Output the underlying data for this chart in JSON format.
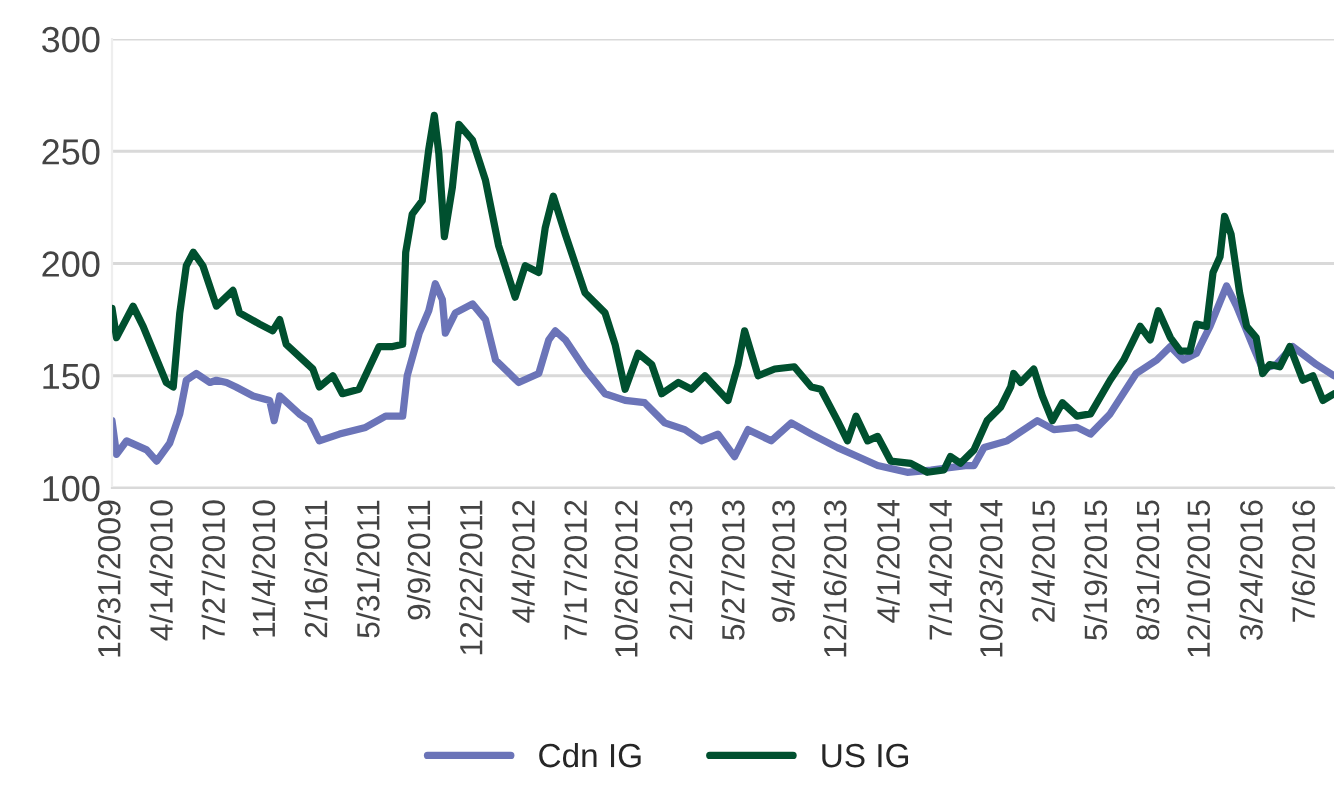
{
  "chart_data": {
    "type": "line",
    "series": [
      {
        "name": "Cdn IG",
        "color": "#6b74b8",
        "x": [
          "2009-12-31",
          "2010-01-09",
          "2010-01-29",
          "2010-03-10",
          "2010-03-30",
          "2010-04-25",
          "2010-05-15",
          "2010-05-28",
          "2010-06-17",
          "2010-07-14",
          "2010-07-27",
          "2010-08-16",
          "2010-09-04",
          "2010-10-08",
          "2010-11-10",
          "2010-11-19",
          "2010-11-30",
          "2011-01-08",
          "2011-01-28",
          "2011-02-17",
          "2011-03-29",
          "2011-05-20",
          "2011-06-29",
          "2011-08-02",
          "2011-08-11",
          "2011-09-04",
          "2011-09-23",
          "2011-10-06",
          "2011-10-20",
          "2011-10-26",
          "2011-11-15",
          "2011-12-19",
          "2012-01-14",
          "2012-02-03",
          "2012-03-20",
          "2012-04-29",
          "2012-05-19",
          "2012-06-01",
          "2012-06-21",
          "2012-07-30",
          "2012-09-08",
          "2012-10-18",
          "2012-11-26",
          "2013-01-05",
          "2013-02-14",
          "2013-03-19",
          "2013-04-21",
          "2013-05-24",
          "2013-06-20",
          "2013-08-05",
          "2013-09-14",
          "2013-10-24",
          "2013-12-15",
          "2014-01-24",
          "2014-03-05",
          "2014-05-03",
          "2014-06-19",
          "2014-08-27",
          "2014-09-13",
          "2014-10-03",
          "2014-11-18",
          "2015-01-17",
          "2015-02-19",
          "2015-04-06",
          "2015-05-03",
          "2015-06-11",
          "2015-08-02",
          "2015-09-12",
          "2015-10-09",
          "2015-11-04",
          "2015-11-30",
          "2015-12-27",
          "2016-01-29",
          "2016-02-18",
          "2016-03-22",
          "2016-04-10",
          "2016-05-07",
          "2016-06-09",
          "2016-07-26",
          "2016-08-30"
        ],
        "values": [
          130,
          115,
          121,
          117,
          112,
          120,
          133,
          148,
          151,
          147,
          148,
          147,
          145,
          141,
          139,
          130,
          141,
          133,
          130,
          121,
          124,
          127,
          132,
          132,
          150,
          169,
          179,
          191,
          184,
          169,
          178,
          182,
          175,
          157,
          147,
          151,
          166,
          170,
          166,
          153,
          142,
          139,
          138,
          129,
          126,
          121,
          124,
          114,
          126,
          121,
          129,
          124,
          118,
          114,
          110,
          107,
          108,
          110,
          110,
          118,
          121,
          130,
          126,
          127,
          124,
          133,
          151,
          157,
          163,
          157,
          160,
          172,
          190,
          181,
          163,
          153,
          155,
          163,
          155,
          150
        ]
      },
      {
        "name": "US IG",
        "color": "#00502f",
        "x": [
          "2009-12-31",
          "2010-01-09",
          "2010-02-11",
          "2010-03-03",
          "2010-04-18",
          "2010-05-02",
          "2010-05-15",
          "2010-05-28",
          "2010-06-11",
          "2010-06-30",
          "2010-07-27",
          "2010-08-29",
          "2010-09-11",
          "2010-10-21",
          "2010-11-16",
          "2010-11-30",
          "2010-12-13",
          "2011-02-04",
          "2011-02-17",
          "2011-03-16",
          "2011-04-04",
          "2011-05-07",
          "2011-06-16",
          "2011-07-13",
          "2011-08-02",
          "2011-08-08",
          "2011-08-21",
          "2011-09-10",
          "2011-09-23",
          "2011-10-04",
          "2011-10-13",
          "2011-10-24",
          "2011-11-09",
          "2011-11-22",
          "2011-12-19",
          "2012-01-14",
          "2012-02-09",
          "2012-03-13",
          "2012-04-02",
          "2012-04-29",
          "2012-05-12",
          "2012-05-28",
          "2012-06-21",
          "2012-07-30",
          "2012-09-08",
          "2012-09-28",
          "2012-10-18",
          "2012-11-13",
          "2012-12-10",
          "2012-12-30",
          "2013-02-01",
          "2013-02-27",
          "2013-03-26",
          "2013-05-11",
          "2013-05-31",
          "2013-06-13",
          "2013-07-10",
          "2013-08-12",
          "2013-09-20",
          "2013-10-24",
          "2013-11-12",
          "2013-12-15",
          "2014-01-04",
          "2014-01-21",
          "2014-02-13",
          "2014-03-05",
          "2014-03-31",
          "2014-05-10",
          "2014-06-12",
          "2014-07-15",
          "2014-07-28",
          "2014-08-17",
          "2014-09-13",
          "2014-10-09",
          "2014-11-05",
          "2014-11-25",
          "2014-12-01",
          "2014-12-15",
          "2015-01-10",
          "2015-01-27",
          "2015-02-16",
          "2015-03-08",
          "2015-04-06",
          "2015-05-03",
          "2015-06-11",
          "2015-07-08",
          "2015-08-10",
          "2015-08-30",
          "2015-09-15",
          "2015-10-09",
          "2015-10-29",
          "2015-11-17",
          "2015-11-30",
          "2015-12-20",
          "2016-01-02",
          "2016-01-16",
          "2016-01-25",
          "2016-02-07",
          "2016-02-24",
          "2016-03-09",
          "2016-03-28",
          "2016-04-10",
          "2016-04-24",
          "2016-05-14",
          "2016-06-03",
          "2016-06-29",
          "2016-07-19",
          "2016-08-08",
          "2016-08-30"
        ],
        "values": [
          180,
          167,
          181,
          172,
          147,
          145,
          178,
          199,
          205,
          199,
          181,
          188,
          178,
          173,
          170,
          175,
          164,
          153,
          145,
          150,
          142,
          144,
          163,
          163,
          164,
          205,
          222,
          228,
          251,
          266,
          249,
          212,
          234,
          262,
          255,
          237,
          208,
          185,
          199,
          196,
          216,
          230,
          213,
          187,
          178,
          164,
          144,
          160,
          155,
          142,
          147,
          144,
          150,
          139,
          155,
          170,
          150,
          153,
          154,
          145,
          144,
          130,
          121,
          132,
          121,
          123,
          112,
          111,
          107,
          108,
          114,
          111,
          117,
          130,
          136,
          145,
          151,
          147,
          153,
          141,
          130,
          138,
          132,
          133,
          148,
          157,
          172,
          166,
          179,
          167,
          161,
          161,
          173,
          172,
          196,
          203,
          221,
          213,
          187,
          172,
          167,
          151,
          155,
          154,
          163,
          148,
          150,
          139,
          142
        ]
      }
    ],
    "xlim": [
      "2009-12-31",
      "2016-08-30"
    ],
    "xticks": [
      {
        "value": "2009-12-31",
        "label": "12/31/2009"
      },
      {
        "value": "2010-04-14",
        "label": "4/14/2010"
      },
      {
        "value": "2010-07-27",
        "label": "7/27/2010"
      },
      {
        "value": "2010-11-04",
        "label": "11/4/2010"
      },
      {
        "value": "2011-02-16",
        "label": "2/16/2011"
      },
      {
        "value": "2011-05-31",
        "label": "5/31/2011"
      },
      {
        "value": "2011-09-09",
        "label": "9/9/2011"
      },
      {
        "value": "2011-12-22",
        "label": "12/22/2011"
      },
      {
        "value": "2012-04-04",
        "label": "4/4/2012"
      },
      {
        "value": "2012-07-17",
        "label": "7/17/2012"
      },
      {
        "value": "2012-10-26",
        "label": "10/26/2012"
      },
      {
        "value": "2013-02-12",
        "label": "2/12/2013"
      },
      {
        "value": "2013-05-27",
        "label": "5/27/2013"
      },
      {
        "value": "2013-09-04",
        "label": "9/4/2013"
      },
      {
        "value": "2013-12-16",
        "label": "12/16/2013"
      },
      {
        "value": "2014-04-01",
        "label": "4/1/2014"
      },
      {
        "value": "2014-07-14",
        "label": "7/14/2014"
      },
      {
        "value": "2014-10-23",
        "label": "10/23/2014"
      },
      {
        "value": "2015-02-04",
        "label": "2/4/2015"
      },
      {
        "value": "2015-05-19",
        "label": "5/19/2015"
      },
      {
        "value": "2015-08-31",
        "label": "8/31/2015"
      },
      {
        "value": "2015-12-10",
        "label": "12/10/2015"
      },
      {
        "value": "2016-03-24",
        "label": "3/24/2016"
      },
      {
        "value": "2016-07-06",
        "label": "7/6/2016"
      }
    ],
    "ylim": [
      100,
      300
    ],
    "yticks": [
      100,
      150,
      200,
      250,
      300
    ],
    "grid": "y",
    "legend": "bottom",
    "marker": "none",
    "line_style": "solid"
  }
}
